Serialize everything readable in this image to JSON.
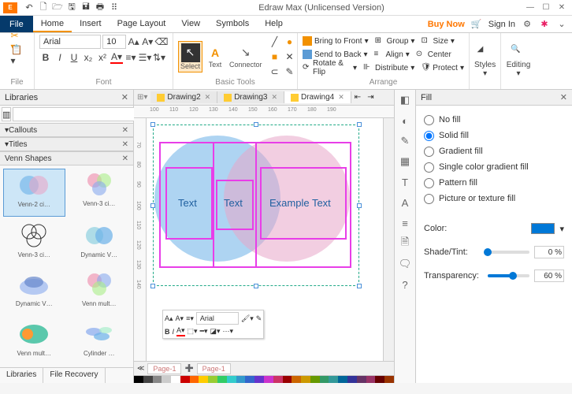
{
  "titlebar": {
    "logo": "E",
    "title": "Edraw Max (Unlicensed Version)"
  },
  "menu": {
    "file": "File",
    "tabs": [
      "Home",
      "Insert",
      "Page Layout",
      "View",
      "Symbols",
      "Help"
    ],
    "activeTab": 0,
    "buy": "Buy Now",
    "signin": "Sign In"
  },
  "ribbon": {
    "fileGroup": "File",
    "fontGroup": "Font",
    "fontName": "Arial",
    "fontSize": "10",
    "basicToolsGroup": "Basic Tools",
    "tools": {
      "select": "Select",
      "text": "Text",
      "connector": "Connector"
    },
    "arrangeGroup": "Arrange",
    "arrange": {
      "bringFront": "Bring to Front",
      "sendBack": "Send to Back",
      "rotateFlip": "Rotate & Flip",
      "group": "Group",
      "align": "Align",
      "distribute": "Distribute",
      "size": "Size",
      "center": "Center",
      "protect": "Protect"
    },
    "styles": "Styles",
    "editing": "Editing"
  },
  "libs": {
    "title": "Libraries",
    "sections": {
      "callouts": "Callouts",
      "titles": "Titles",
      "venn": "Venn Shapes"
    },
    "shapes": [
      "Venn-2 ci…",
      "Venn-3 ci…",
      "Venn-3 ci…",
      "Dynamic V…",
      "Dynamic V…",
      "Venn mult…",
      "Venn mult…",
      "Cylinder …"
    ],
    "footer": {
      "libraries": "Libraries",
      "recovery": "File Recovery"
    }
  },
  "docs": {
    "tabs": [
      "Drawing2",
      "Drawing3",
      "Drawing4"
    ],
    "active": 2
  },
  "ruler": {
    "h": [
      "100",
      "110",
      "120",
      "130",
      "140",
      "150",
      "160",
      "170",
      "180",
      "190"
    ],
    "v": [
      "70",
      "80",
      "90",
      "100",
      "110",
      "120",
      "130",
      "140"
    ]
  },
  "canvas": {
    "circle1": {
      "color": "#6bb0e8",
      "opacity": 0.55
    },
    "circle2": {
      "color": "#e8a6c8",
      "opacity": 0.55
    },
    "text1": "Text",
    "text2": "Text",
    "text3": "Example Text"
  },
  "miniToolbar": {
    "font": "Arial"
  },
  "pageTabs": {
    "p1": "Page-1",
    "p2": "Page-1"
  },
  "colorStrip": [
    "#000",
    "#444",
    "#888",
    "#ccc",
    "#fff",
    "#c00",
    "#f60",
    "#fc0",
    "#9c3",
    "#3c6",
    "#3cc",
    "#39c",
    "#36c",
    "#63c",
    "#c3c",
    "#c36",
    "#900",
    "#c60",
    "#c90",
    "#690",
    "#396",
    "#399",
    "#069",
    "#339",
    "#636",
    "#936",
    "#600",
    "#930"
  ],
  "sideIcons": [
    "◧",
    "◐",
    "✎",
    "▦",
    "T",
    "A",
    "≡",
    "🗎",
    "🗨",
    "?"
  ],
  "fill": {
    "title": "Fill",
    "options": {
      "noFill": "No fill",
      "solid": "Solid fill",
      "gradient": "Gradient fill",
      "singleGrad": "Single color gradient fill",
      "pattern": "Pattern fill",
      "picture": "Picture or texture fill"
    },
    "selected": "solid",
    "colorLabel": "Color:",
    "colorValue": "#0078d7",
    "shadeLabel": "Shade/Tint:",
    "shadeValue": "0 %",
    "shadePct": 0,
    "transLabel": "Transparency:",
    "transValue": "60 %",
    "transPct": 60
  }
}
